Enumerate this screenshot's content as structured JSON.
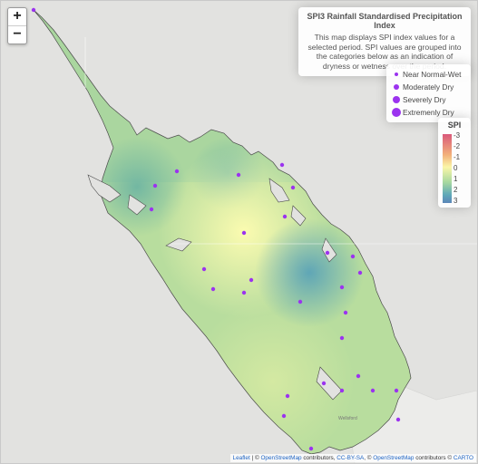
{
  "zoom": {
    "in_label": "+",
    "out_label": "−"
  },
  "info": {
    "title": "SPI3 Rainfall Standardised Precipitation Index",
    "description": "This map displays SPI index values for a selected period. SPI values are grouped into the categories below as an indication of dryness or wetness over the period."
  },
  "legend": {
    "items": [
      {
        "label": "Near Normal-Wet"
      },
      {
        "label": "Moderately Dry"
      },
      {
        "label": "Severely Dry"
      },
      {
        "label": "Extremenly Dry"
      }
    ],
    "dot_color": "#9b33ef"
  },
  "colorbar": {
    "title": "SPI",
    "ticks": [
      "-3",
      "-2",
      "-1",
      "0",
      "1",
      "2",
      "3"
    ]
  },
  "map_labels": {
    "town": "Wellsford"
  },
  "attribution": {
    "leaflet": "Leaflet",
    "sep1": " | © ",
    "osm1": "OpenStreetMap",
    "t1": " contributors, ",
    "ccbysa": "CC-BY-SA",
    "t2": ", © ",
    "osm2": "OpenStreetMap",
    "t3": " contributors © ",
    "carto": "CARTO"
  }
}
